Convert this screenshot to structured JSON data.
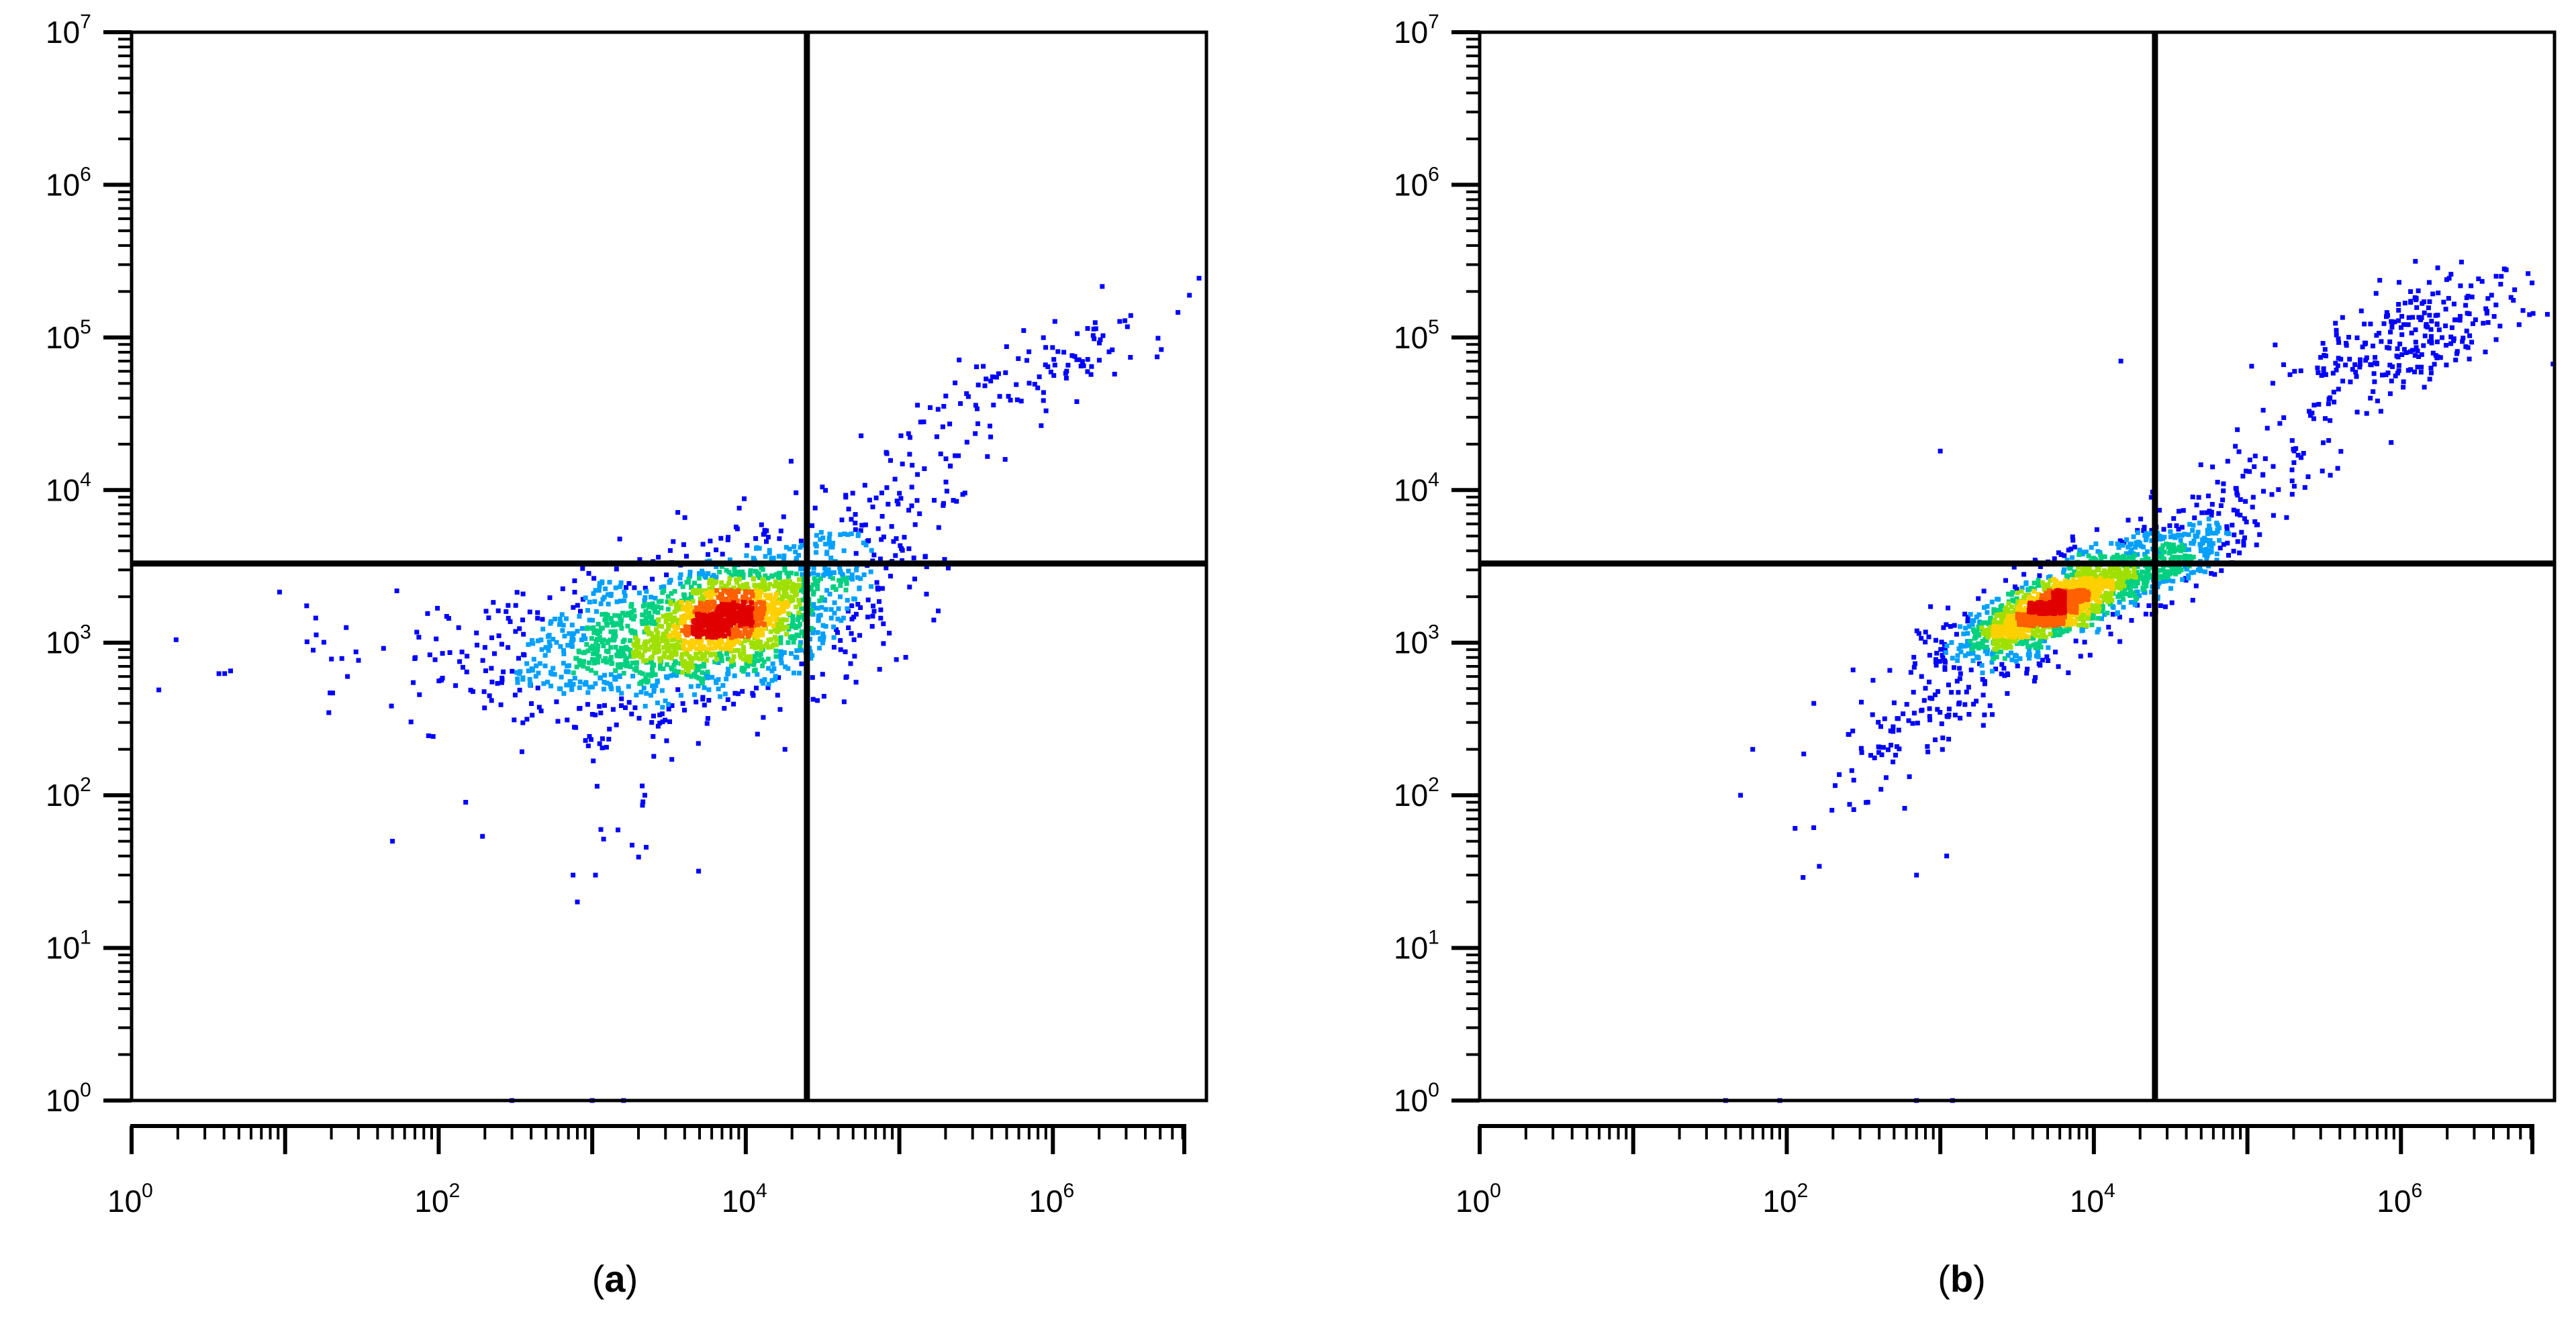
{
  "figure": {
    "captions": [
      {
        "letter": "a",
        "open": "(",
        "close": ")"
      },
      {
        "letter": "b",
        "open": "(",
        "close": ")"
      }
    ]
  },
  "chart_data": [
    {
      "type": "scatter",
      "panel": "a",
      "title": "",
      "xlabel": "",
      "ylabel": "",
      "x_scale": "log",
      "y_scale": "log",
      "xlim": [
        1,
        10000000
      ],
      "ylim": [
        1,
        10000000
      ],
      "x_tick_labels": [
        {
          "value": 1,
          "base": "10",
          "exp": "0"
        },
        {
          "value": 100,
          "base": "10",
          "exp": "2"
        },
        {
          "value": 10000,
          "base": "10",
          "exp": "4"
        },
        {
          "value": 1000000,
          "base": "10",
          "exp": "6"
        }
      ],
      "y_tick_labels": [
        {
          "value": 1,
          "base": "10",
          "exp": "0"
        },
        {
          "value": 10,
          "base": "10",
          "exp": "1"
        },
        {
          "value": 100,
          "base": "10",
          "exp": "2"
        },
        {
          "value": 1000,
          "base": "10",
          "exp": "3"
        },
        {
          "value": 10000,
          "base": "10",
          "exp": "4"
        },
        {
          "value": 100000,
          "base": "10",
          "exp": "5"
        },
        {
          "value": 1000000,
          "base": "10",
          "exp": "6"
        },
        {
          "value": 10000000,
          "base": "10",
          "exp": "7"
        }
      ],
      "quadrant_gates": {
        "x": 25000,
        "y": 3300
      },
      "density_colormap": [
        "#0000ff",
        "#00a0ff",
        "#00d080",
        "#a0e000",
        "#ffd000",
        "#ff6000",
        "#e00000"
      ],
      "populations": [
        {
          "name_hidden": true,
          "center": [
            6000,
            1300
          ],
          "spread": [
            0.55,
            0.28
          ],
          "corr": 0.45,
          "count": 1500
        },
        {
          "name_hidden": true,
          "center": [
            8000,
            1500
          ],
          "spread": [
            0.22,
            0.13
          ],
          "corr": 0.4,
          "count": 500
        },
        {
          "name_hidden": true,
          "center": [
            800,
            1000
          ],
          "spread": [
            0.55,
            0.22
          ],
          "corr": 0.2,
          "count": 200
        },
        {
          "name_hidden": true,
          "center": [
            40,
            900
          ],
          "spread": [
            0.55,
            0.25
          ],
          "corr": 0.0,
          "count": 35
        },
        {
          "name_hidden": true,
          "center": [
            800000,
            60000
          ],
          "spread": [
            0.45,
            0.25
          ],
          "corr": 0.8,
          "count": 110
        },
        {
          "name_hidden": true,
          "center": [
            60000,
            5500
          ],
          "spread": [
            0.35,
            0.3
          ],
          "corr": 0.75,
          "count": 90
        },
        {
          "name_hidden": true,
          "center": [
            1500,
            150
          ],
          "spread": [
            0.3,
            0.35
          ],
          "corr": 0.0,
          "count": 20
        }
      ],
      "isolated_points": [
        [
          50,
          50
        ],
        [
          150,
          90
        ],
        [
          750,
          30
        ],
        [
          800,
          20
        ],
        [
          1050,
          30
        ],
        [
          2200,
          100
        ],
        [
          300,
          1
        ],
        [
          1000,
          1
        ],
        [
          1600,
          1
        ],
        [
          18000,
          200
        ]
      ]
    },
    {
      "type": "scatter",
      "panel": "b",
      "title": "",
      "xlabel": "",
      "ylabel": "",
      "x_scale": "log",
      "y_scale": "log",
      "xlim": [
        1,
        10000000
      ],
      "ylim": [
        1,
        10000000
      ],
      "x_tick_labels": [
        {
          "value": 1,
          "base": "10",
          "exp": "0"
        },
        {
          "value": 100,
          "base": "10",
          "exp": "2"
        },
        {
          "value": 10000,
          "base": "10",
          "exp": "4"
        },
        {
          "value": 1000000,
          "base": "10",
          "exp": "6"
        }
      ],
      "y_tick_labels": [
        {
          "value": 1,
          "base": "10",
          "exp": "0"
        },
        {
          "value": 10,
          "base": "10",
          "exp": "1"
        },
        {
          "value": 100,
          "base": "10",
          "exp": "2"
        },
        {
          "value": 1000,
          "base": "10",
          "exp": "3"
        },
        {
          "value": 10000,
          "base": "10",
          "exp": "4"
        },
        {
          "value": 100000,
          "base": "10",
          "exp": "5"
        },
        {
          "value": 1000000,
          "base": "10",
          "exp": "6"
        },
        {
          "value": 10000000,
          "base": "10",
          "exp": "7"
        }
      ],
      "quadrant_gates": {
        "x": 25000,
        "y": 3300
      },
      "density_colormap": [
        "#0000ff",
        "#00a0ff",
        "#00d080",
        "#a0e000",
        "#ffd000",
        "#ff6000",
        "#e00000"
      ],
      "populations": [
        {
          "name_hidden": true,
          "center": [
            7000,
            1900
          ],
          "spread": [
            0.42,
            0.22
          ],
          "corr": 0.8,
          "count": 1300
        },
        {
          "name_hidden": true,
          "center": [
            5000,
            1700
          ],
          "spread": [
            0.2,
            0.11
          ],
          "corr": 0.75,
          "count": 500
        },
        {
          "name_hidden": true,
          "center": [
            800,
            300
          ],
          "spread": [
            0.45,
            0.38
          ],
          "corr": 0.85,
          "count": 120
        },
        {
          "name_hidden": true,
          "center": [
            1200000,
            100000
          ],
          "spread": [
            0.38,
            0.22
          ],
          "corr": 0.55,
          "count": 260
        },
        {
          "name_hidden": true,
          "center": [
            120000,
            12000
          ],
          "spread": [
            0.4,
            0.35
          ],
          "corr": 0.8,
          "count": 110
        },
        {
          "name_hidden": true,
          "center": [
            40000,
            4000
          ],
          "spread": [
            0.2,
            0.15
          ],
          "corr": 0.5,
          "count": 120
        }
      ],
      "isolated_points": [
        [
          50,
          100
        ],
        [
          60,
          200
        ],
        [
          150,
          400
        ],
        [
          1100,
          40
        ],
        [
          700,
          30
        ],
        [
          1000,
          18000
        ],
        [
          15000,
          70000
        ],
        [
          40,
          1
        ],
        [
          90,
          1
        ],
        [
          700,
          1
        ],
        [
          1200,
          1
        ]
      ]
    }
  ]
}
